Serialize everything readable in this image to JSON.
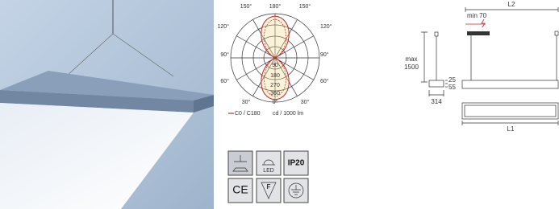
{
  "polar_diagram": {
    "angle_labels": [
      "150°",
      "180°",
      "150°",
      "120°",
      "120°",
      "90°",
      "90°",
      "60°",
      "60°",
      "30°",
      "0°",
      "30°"
    ],
    "intensity_labels": [
      "90",
      "180",
      "270",
      "360"
    ],
    "legend": {
      "curve": "C0 / C180",
      "units": "cd / 1000 lm"
    }
  },
  "icons": {
    "led": "LED",
    "protection": "IP20",
    "conformity": "CE",
    "flammability": "F"
  },
  "dimensions": {
    "length_top": "L2",
    "min_gap": "min 70",
    "max_label": "max",
    "max_height": "1500",
    "profile_top": "25",
    "profile_height": "55",
    "width": "314",
    "length_bottom": "L1"
  }
}
